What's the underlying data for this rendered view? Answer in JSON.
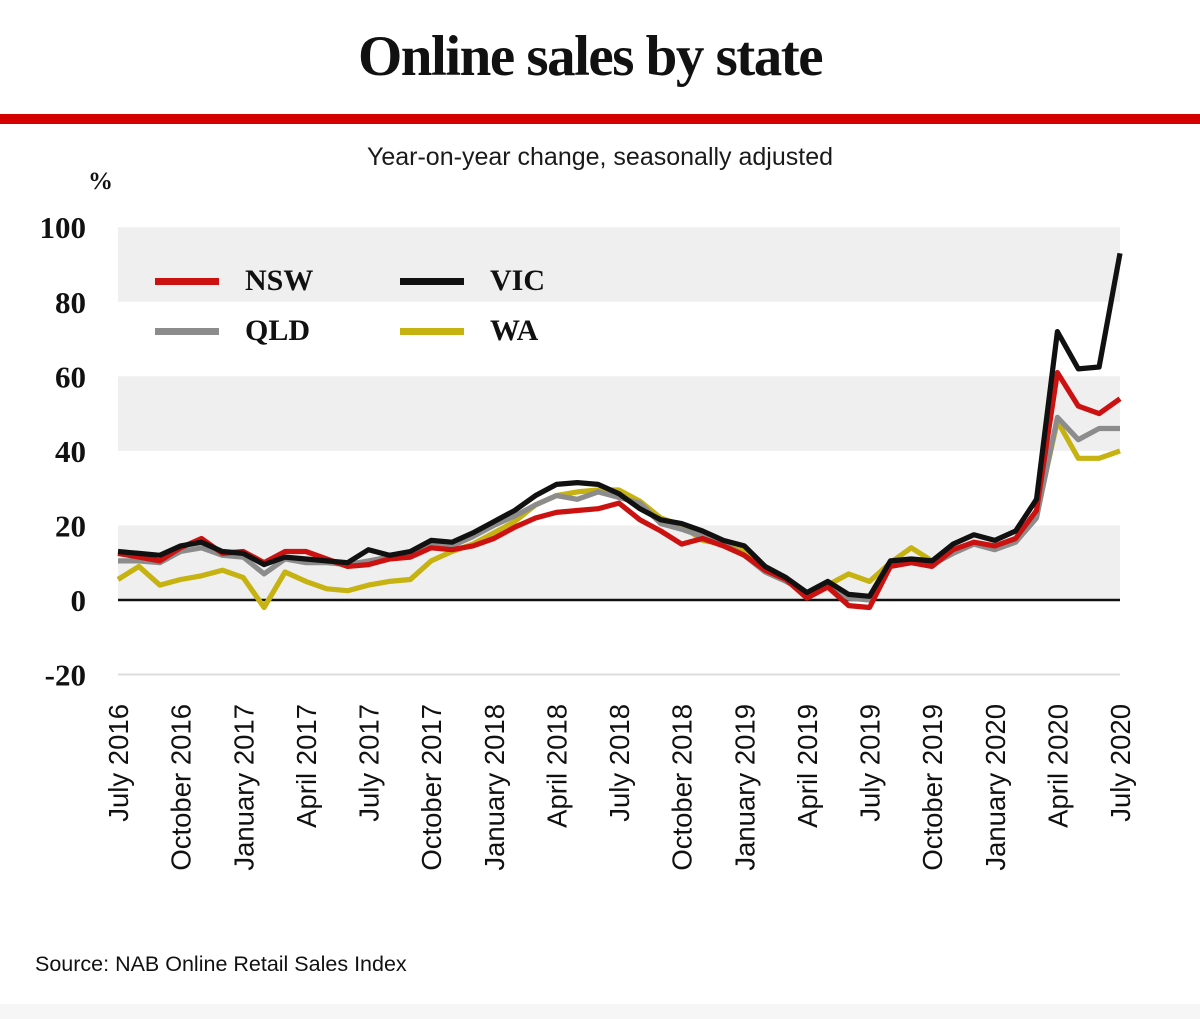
{
  "header": {
    "title": "Online sales by state",
    "subtitle": "Year-on-year change, seasonally adjusted",
    "accent_bar_color": "#d40000"
  },
  "footer": {
    "source": "Source: NAB Online Retail Sales Index"
  },
  "chart_data": {
    "type": "line",
    "unit_label": "%",
    "ylim": [
      -20,
      100
    ],
    "y_ticks": [
      100,
      80,
      60,
      40,
      20,
      0,
      -20
    ],
    "grid_bands": [
      [
        80,
        100
      ],
      [
        40,
        60
      ],
      [
        0,
        20
      ]
    ],
    "band_color": "#efefef",
    "minor_line_color": "#dcdcdc",
    "zero_line_color": "#111111",
    "legend_position": "top-left",
    "x": [
      "July 2016",
      "August 2016",
      "September 2016",
      "October 2016",
      "November 2016",
      "December 2016",
      "January 2017",
      "February 2017",
      "March 2017",
      "April 2017",
      "May 2017",
      "June 2017",
      "July 2017",
      "August 2017",
      "September 2017",
      "October 2017",
      "November 2017",
      "December 2017",
      "January 2018",
      "February 2018",
      "March 2018",
      "April 2018",
      "May 2018",
      "June 2018",
      "July 2018",
      "August 2018",
      "September 2018",
      "October 2018",
      "November 2018",
      "December 2018",
      "January 2019",
      "February 2019",
      "March 2019",
      "April 2019",
      "May 2019",
      "June 2019",
      "July 2019",
      "August 2019",
      "September 2019",
      "October 2019",
      "November 2019",
      "December 2019",
      "January 2020",
      "February 2020",
      "March 2020",
      "April 2020",
      "May 2020",
      "June 2020",
      "July 2020"
    ],
    "x_ticks": [
      "July 2016",
      "October 2016",
      "January 2017",
      "April 2017",
      "July 2017",
      "October 2017",
      "January 2018",
      "April 2018",
      "July 2018",
      "October 2018",
      "January 2019",
      "April 2019",
      "July 2019",
      "October 2019",
      "January 2020",
      "April 2020",
      "July 2020"
    ],
    "series": [
      {
        "name": "NSW",
        "color": "#cc1111",
        "values": [
          12.5,
          11.5,
          10.5,
          14,
          16.5,
          12.5,
          13,
          10,
          13,
          13,
          11,
          9,
          9.5,
          11,
          11.5,
          14,
          13.5,
          14.5,
          16.5,
          19.5,
          22,
          23.5,
          24,
          24.5,
          26,
          21.5,
          18.5,
          15,
          16.5,
          14.5,
          12,
          8,
          5.5,
          0.5,
          3.5,
          -1.5,
          -2,
          9,
          10,
          9,
          13.5,
          15.5,
          14.5,
          16.5,
          24,
          61,
          52,
          50,
          54
        ]
      },
      {
        "name": "VIC",
        "color": "#111111",
        "values": [
          13,
          12.5,
          12,
          14.5,
          15.5,
          13,
          12.5,
          9.5,
          11.5,
          11,
          10.5,
          10,
          13.5,
          12,
          13,
          16,
          15.5,
          18,
          21,
          24,
          28,
          31,
          31.5,
          31,
          28.5,
          24.5,
          21.5,
          20.5,
          18.5,
          16,
          14.5,
          9,
          6,
          2,
          5,
          1.5,
          1,
          10.5,
          11,
          10.5,
          15,
          17.5,
          16,
          18.5,
          27,
          72,
          62,
          62.5,
          93
        ]
      },
      {
        "name": "QLD",
        "color": "#8c8c8c",
        "values": [
          10.5,
          10.5,
          10,
          13,
          14,
          12,
          11.5,
          7,
          11,
          10,
          10,
          9.5,
          10.5,
          11.5,
          12.5,
          15,
          14.5,
          17,
          20,
          22.5,
          25.5,
          28,
          27,
          29,
          27.5,
          26,
          20.5,
          19,
          17,
          15,
          12,
          7.5,
          5,
          2,
          4.5,
          0.5,
          0,
          9.5,
          10.5,
          9.5,
          12.5,
          15,
          13.5,
          15.5,
          22,
          49,
          43,
          46,
          46
        ]
      },
      {
        "name": "WA",
        "color": "#c6b211",
        "values": [
          5.5,
          9,
          4,
          5.5,
          6.5,
          8,
          6,
          -2,
          7.5,
          5,
          3,
          2.5,
          4,
          5,
          5.5,
          10.5,
          13,
          15,
          18,
          21,
          25.5,
          28,
          29,
          29.5,
          29.5,
          26.5,
          22,
          20,
          16,
          15,
          13,
          8,
          5.5,
          1.5,
          4,
          7,
          5,
          10,
          14,
          10.5,
          13,
          15.5,
          14,
          16,
          23,
          48,
          38,
          38,
          40
        ]
      }
    ],
    "draw_order": [
      3,
      2,
      0,
      1
    ]
  }
}
